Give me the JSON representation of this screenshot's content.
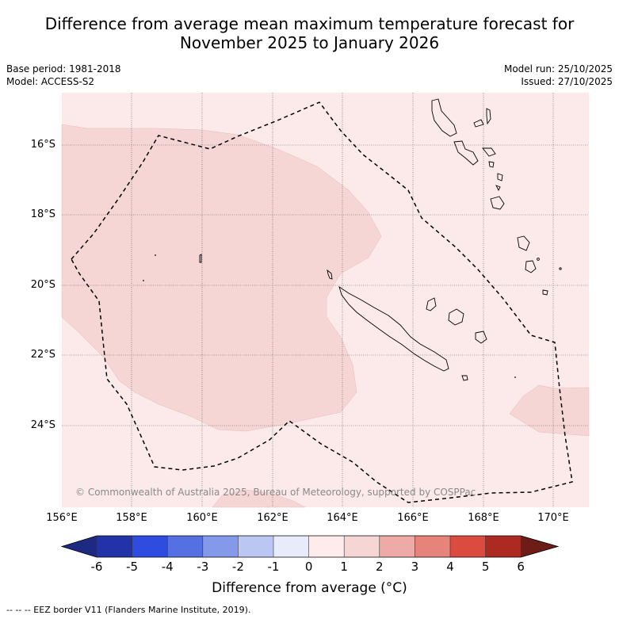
{
  "title_line1": "Difference from average mean maximum temperature forecast for",
  "title_line2": "November 2025 to January 2026",
  "base_period": "Base period: 1981-2018",
  "model": "Model: ACCESS-S2",
  "model_run": "Model run: 25/10/2025",
  "issued": "Issued: 27/10/2025",
  "copyright": "© Commonwealth of Australia 2025, Bureau of Meteorology, supported by COSPPac",
  "lat_labels": [
    "16°S",
    "18°S",
    "20°S",
    "22°S",
    "24°S"
  ],
  "lon_labels": [
    "156°E",
    "158°E",
    "160°E",
    "162°E",
    "164°E",
    "166°E",
    "168°E",
    "170°E"
  ],
  "colorbar": {
    "ticks": [
      "-6",
      "-5",
      "-4",
      "-3",
      "-2",
      "-1",
      "0",
      "1",
      "2",
      "3",
      "4",
      "5",
      "6"
    ],
    "colors": [
      "#1e2a82",
      "#2233aa",
      "#2e4de0",
      "#5570e3",
      "#8599ea",
      "#bcc6f3",
      "#e8ebfa",
      "#fdeceb",
      "#f5d6d5",
      "#eeaaa6",
      "#e6837b",
      "#dc4b3f",
      "#ad2a22",
      "#6e1c17"
    ],
    "label": "Difference from average (°C)"
  },
  "footer": "--  --  -- EEZ border V11 (Flanders Marine Institute, 2019).",
  "map": {
    "background_color": "#fbeae9",
    "anomaly_color": "#f5d6d5"
  }
}
